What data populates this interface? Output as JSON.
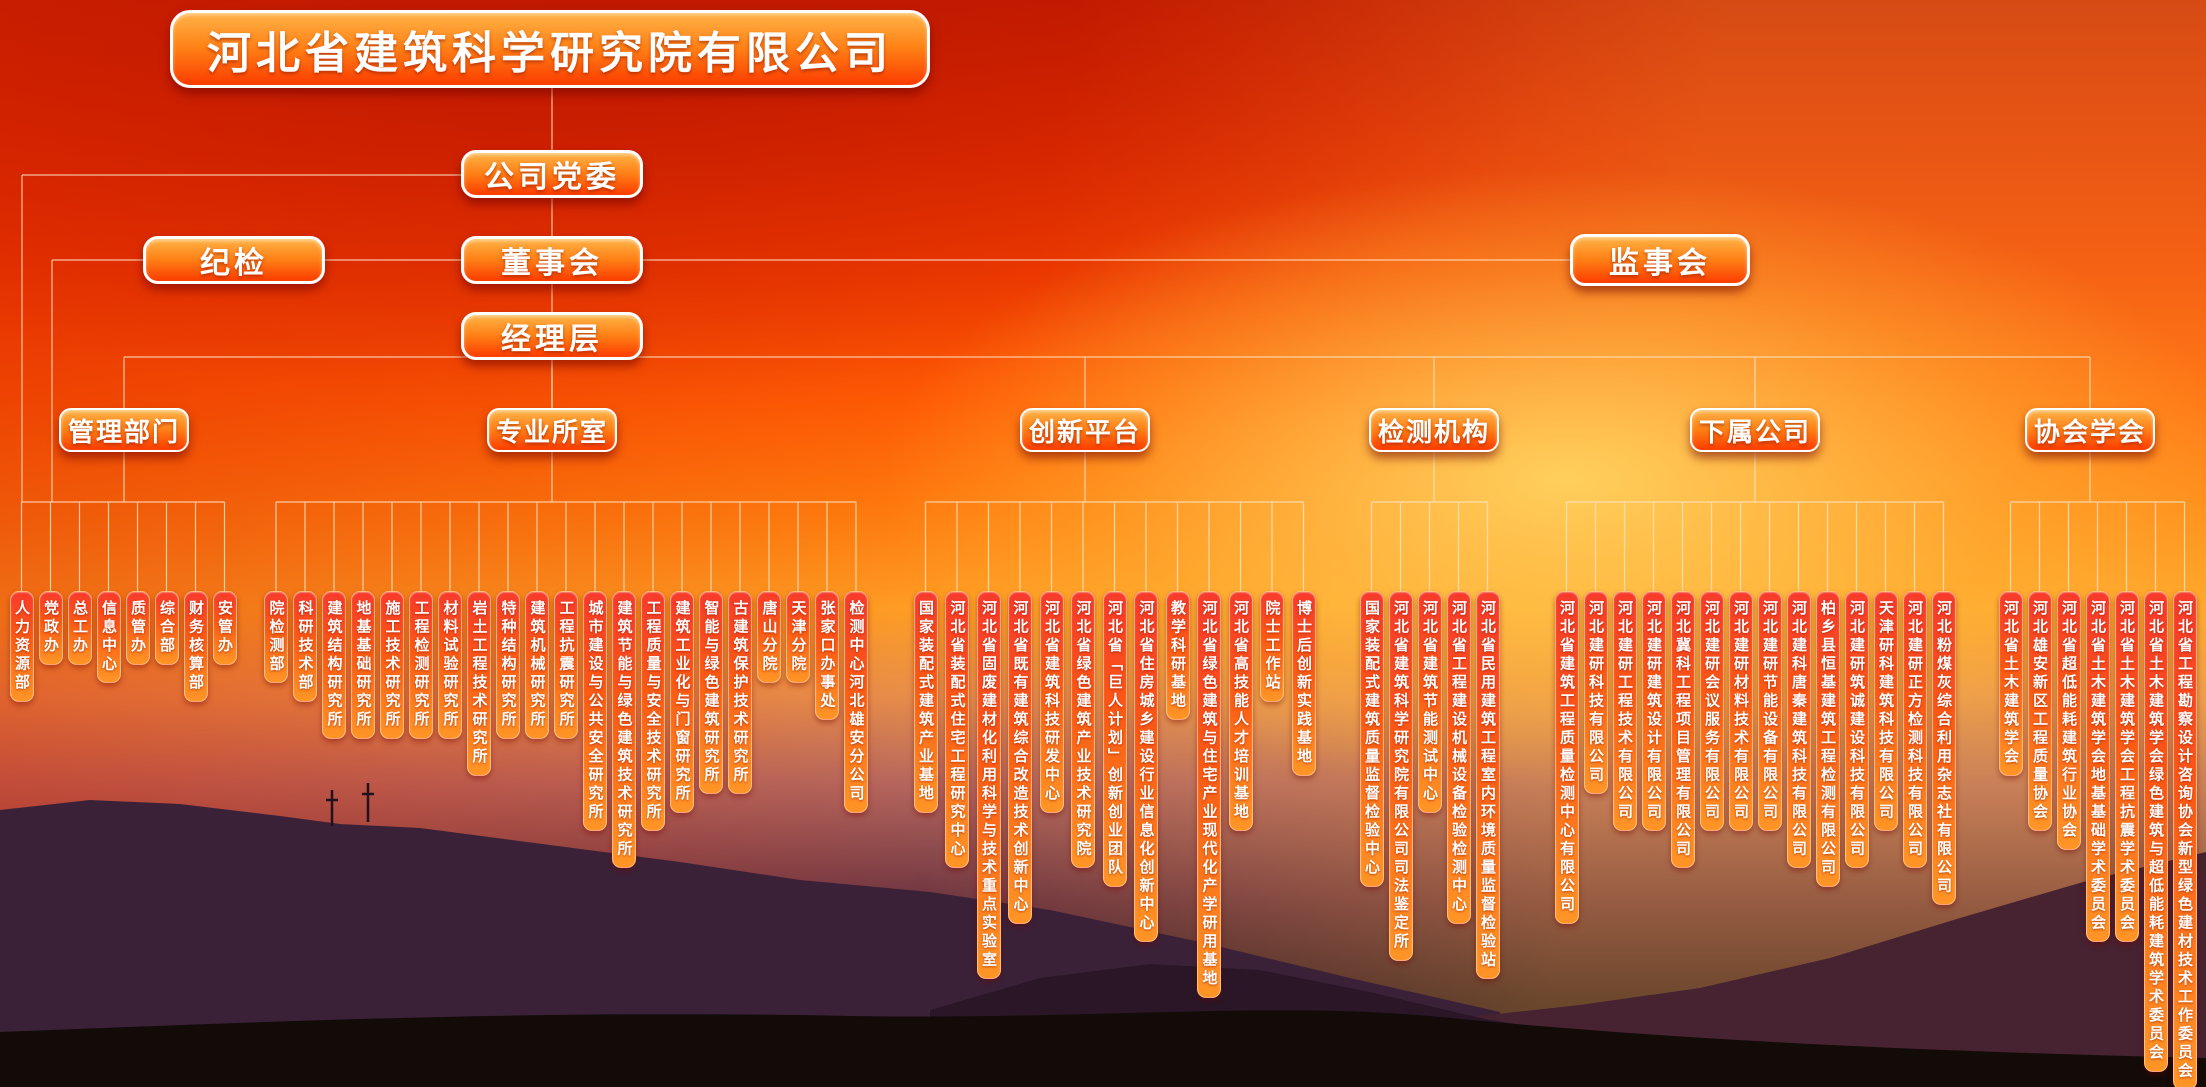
{
  "title": "河北省建筑科学研究院有限公司",
  "top_nodes": {
    "party_committee": "公司党委",
    "discipline_inspection": "纪检",
    "board_of_directors": "董事会",
    "board_of_supervisors": "监事会",
    "management_level": "经理层"
  },
  "branches": [
    {
      "id": "management-depts",
      "label": "管理部门",
      "children": [
        "人力资源部",
        "党政办",
        "总工办",
        "信息中心",
        "质管办",
        "综合部",
        "财务核算部",
        "安管办"
      ]
    },
    {
      "id": "professional-offices",
      "label": "专业所室",
      "children": [
        "院检测部",
        "科研技术部",
        "建筑结构研究所",
        "地基基础研究所",
        "施工技术研究所",
        "工程检测研究所",
        "材料试验研究所",
        "岩土工程技术研究所",
        "特种结构研究所",
        "建筑机械研究所",
        "工程抗震研究所",
        "城市建设与公共安全研究所",
        "建筑节能与绿色建筑技术研究所",
        "工程质量与安全技术研究所",
        "建筑工业化与门窗研究所",
        "智能与绿色建筑研究所",
        "古建筑保护技术研究所",
        "唐山分院",
        "天津分院",
        "张家口办事处",
        "检测中心河北雄安分公司"
      ]
    },
    {
      "id": "innovation-platforms",
      "label": "创新平台",
      "children": [
        "国家装配式建筑产业基地",
        "河北省装配式住宅工程研究中心",
        "河北省固废建材化利用科学与技术重点实验室",
        "河北省既有建筑综合改造技术创新中心",
        "河北省建筑科技研发中心",
        "河北省绿色建筑产业技术研究院",
        "河北省「巨人计划」创新创业团队",
        "河北省住房城乡建设行业信息化创新中心",
        "教学科研基地",
        "河北省绿色建筑与住宅产业现代化产学研用基地",
        "河北省高技能人才培训基地",
        "院士工作站",
        "博士后创新实践基地"
      ]
    },
    {
      "id": "testing-institutions",
      "label": "检测机构",
      "children": [
        "国家装配式建筑质量监督检验中心",
        "河北省建筑科学研究院有限公司司法鉴定所",
        "河北省建筑节能测试中心",
        "河北省工程建设机械设备检验检测中心",
        "河北省民用建筑工程室内环境质量监督检验站"
      ]
    },
    {
      "id": "subsidiaries",
      "label": "下属公司",
      "children": [
        "河北省建筑工程质量检测中心有限公司",
        "河北建研科技有限公司",
        "河北建研工程技术有限公司",
        "河北建研建筑设计有限公司",
        "河北冀科工程项目管理有限公司",
        "河北建研会议服务有限公司",
        "河北建研材料技术有限公司",
        "河北建研节能设备有限公司",
        "河北建科唐秦建筑科技有限公司",
        "柏乡县恒基建筑工程检测有限公司",
        "河北建研筑诚建设科技有限公司",
        "天津研科建筑科技有限公司",
        "河北建研正方检测科技有限公司",
        "河北粉煤灰综合利用杂志社有限公司"
      ]
    },
    {
      "id": "associations",
      "label": "协会学会",
      "children": [
        "河北省土木建筑学会",
        "河北雄安新区工程质量协会",
        "河北省超低能耗建筑行业协会",
        "河北省土木建筑学会地基基础学术委员会",
        "河北省土木建筑学会工程抗震学术委员会",
        "河北省土木建筑学会绿色建筑与超低能耗建筑学术委员会",
        "河北省工程勘察设计咨询协会新型绿色建材技术工作委员会"
      ]
    }
  ],
  "colors": {
    "node_gradient_top": "#ffb347",
    "node_gradient_bottom": "#fb3c00",
    "child_gradient_top": "#f73a2c",
    "child_gradient_bottom": "#ff9526",
    "connector_line": "#ffe3c2",
    "text": "#ffffff",
    "sky_top_red": "#c61d00",
    "sun_glow_yellow": "#ffd054",
    "mountain_dark": "#1a0d14"
  }
}
